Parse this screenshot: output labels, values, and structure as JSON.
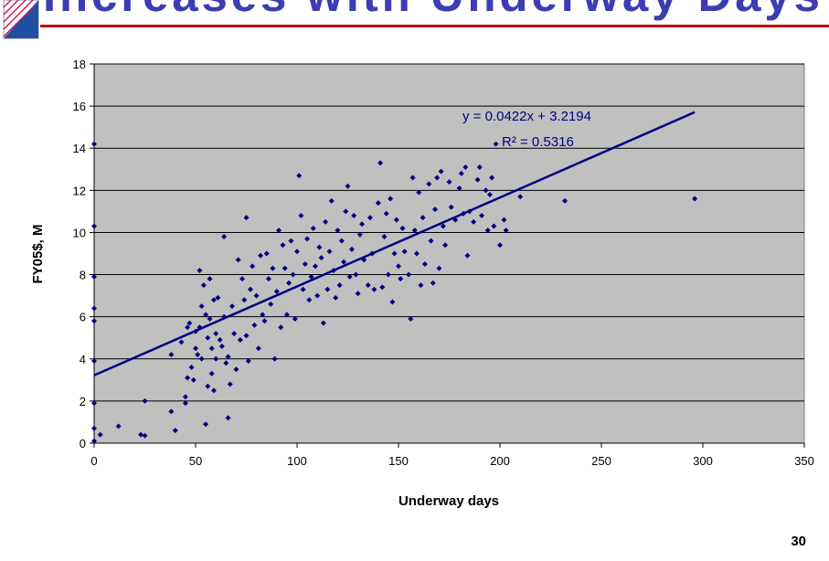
{
  "slide": {
    "title": "Increases with Underway Days",
    "page_number": "30"
  },
  "chart_data": {
    "type": "scatter",
    "x_label": "Underway days",
    "y_label": "FY05$, M",
    "annotations": [
      "y = 0.0422x + 3.2194",
      "R² = 0.5316"
    ],
    "color": "#000080",
    "xlim": [
      0,
      350
    ],
    "xticks": [
      0,
      50,
      100,
      150,
      200,
      250,
      300,
      350
    ],
    "ylim": [
      0,
      18
    ],
    "yticks": [
      0,
      2,
      4,
      6,
      8,
      10,
      12,
      14,
      16,
      18
    ],
    "grid": true,
    "trendline": {
      "slope": 0.0422,
      "intercept": 3.2194,
      "x": [
        0,
        296
      ]
    },
    "x": [
      0,
      0,
      0,
      0,
      0,
      0,
      0,
      0,
      0,
      3,
      12,
      23,
      25,
      25,
      38,
      38,
      40,
      43,
      45,
      45,
      46,
      46,
      47,
      48,
      49,
      50,
      50,
      51,
      52,
      52,
      53,
      53,
      54,
      55,
      55,
      56,
      56,
      57,
      57,
      58,
      58,
      59,
      59,
      60,
      60,
      61,
      62,
      63,
      64,
      64,
      65,
      66,
      66,
      67,
      68,
      69,
      70,
      71,
      72,
      73,
      74,
      75,
      75,
      76,
      77,
      78,
      79,
      80,
      81,
      82,
      83,
      84,
      85,
      86,
      87,
      88,
      89,
      90,
      91,
      92,
      93,
      94,
      95,
      96,
      97,
      98,
      99,
      100,
      101,
      102,
      103,
      104,
      105,
      106,
      107,
      108,
      109,
      110,
      111,
      112,
      113,
      114,
      115,
      116,
      117,
      118,
      119,
      120,
      121,
      122,
      123,
      124,
      125,
      126,
      127,
      128,
      129,
      130,
      131,
      132,
      133,
      135,
      136,
      137,
      138,
      140,
      141,
      142,
      143,
      144,
      145,
      146,
      147,
      148,
      149,
      150,
      151,
      152,
      153,
      155,
      156,
      157,
      158,
      159,
      160,
      161,
      162,
      163,
      165,
      166,
      167,
      168,
      169,
      170,
      171,
      172,
      173,
      175,
      176,
      178,
      180,
      181,
      182,
      183,
      184,
      185,
      187,
      189,
      190,
      191,
      193,
      194,
      195,
      196,
      197,
      198,
      200,
      202,
      203,
      210,
      232,
      296
    ],
    "values": [
      14.2,
      10.3,
      7.9,
      6.4,
      5.8,
      3.9,
      1.9,
      0.7,
      0.1,
      0.4,
      0.8,
      0.4,
      0.35,
      2.0,
      1.5,
      4.2,
      0.6,
      4.8,
      1.9,
      2.2,
      3.1,
      5.5,
      5.7,
      3.6,
      3.0,
      4.5,
      5.3,
      4.2,
      8.2,
      5.5,
      6.5,
      4.0,
      7.5,
      0.9,
      6.1,
      5.0,
      2.7,
      7.8,
      5.9,
      4.5,
      3.3,
      6.8,
      2.5,
      5.2,
      4.0,
      6.9,
      4.9,
      4.6,
      9.8,
      6.0,
      3.8,
      1.2,
      4.1,
      2.8,
      6.5,
      5.2,
      3.5,
      8.7,
      4.9,
      7.8,
      6.8,
      10.7,
      5.1,
      3.9,
      7.3,
      8.4,
      5.6,
      7.0,
      4.5,
      8.9,
      6.1,
      5.8,
      9.0,
      7.8,
      6.6,
      8.3,
      4.0,
      7.2,
      10.1,
      5.5,
      9.4,
      8.3,
      6.1,
      7.6,
      9.6,
      8.0,
      5.9,
      9.1,
      12.7,
      10.8,
      7.3,
      8.5,
      9.7,
      6.8,
      7.9,
      10.2,
      8.4,
      7.0,
      9.3,
      8.8,
      5.7,
      10.5,
      7.3,
      9.1,
      11.5,
      8.2,
      6.9,
      10.1,
      7.5,
      9.6,
      8.6,
      11.0,
      12.2,
      7.9,
      9.2,
      10.8,
      8.0,
      7.1,
      9.9,
      10.4,
      8.7,
      7.5,
      10.7,
      9.0,
      7.3,
      11.4,
      13.3,
      7.4,
      9.8,
      10.9,
      8.0,
      11.6,
      6.7,
      9.0,
      10.6,
      8.4,
      7.8,
      10.2,
      9.1,
      8.0,
      5.9,
      12.6,
      10.1,
      9.0,
      11.9,
      7.5,
      10.7,
      8.5,
      12.3,
      9.6,
      7.6,
      11.1,
      12.6,
      8.3,
      12.9,
      10.3,
      9.4,
      12.4,
      11.2,
      10.6,
      12.1,
      12.8,
      10.9,
      13.1,
      8.9,
      11.0,
      10.5,
      12.5,
      13.1,
      10.8,
      12.0,
      10.1,
      11.8,
      12.6,
      10.3,
      14.2,
      9.4,
      10.6,
      10.1,
      11.7,
      11.5,
      11.6
    ]
  }
}
